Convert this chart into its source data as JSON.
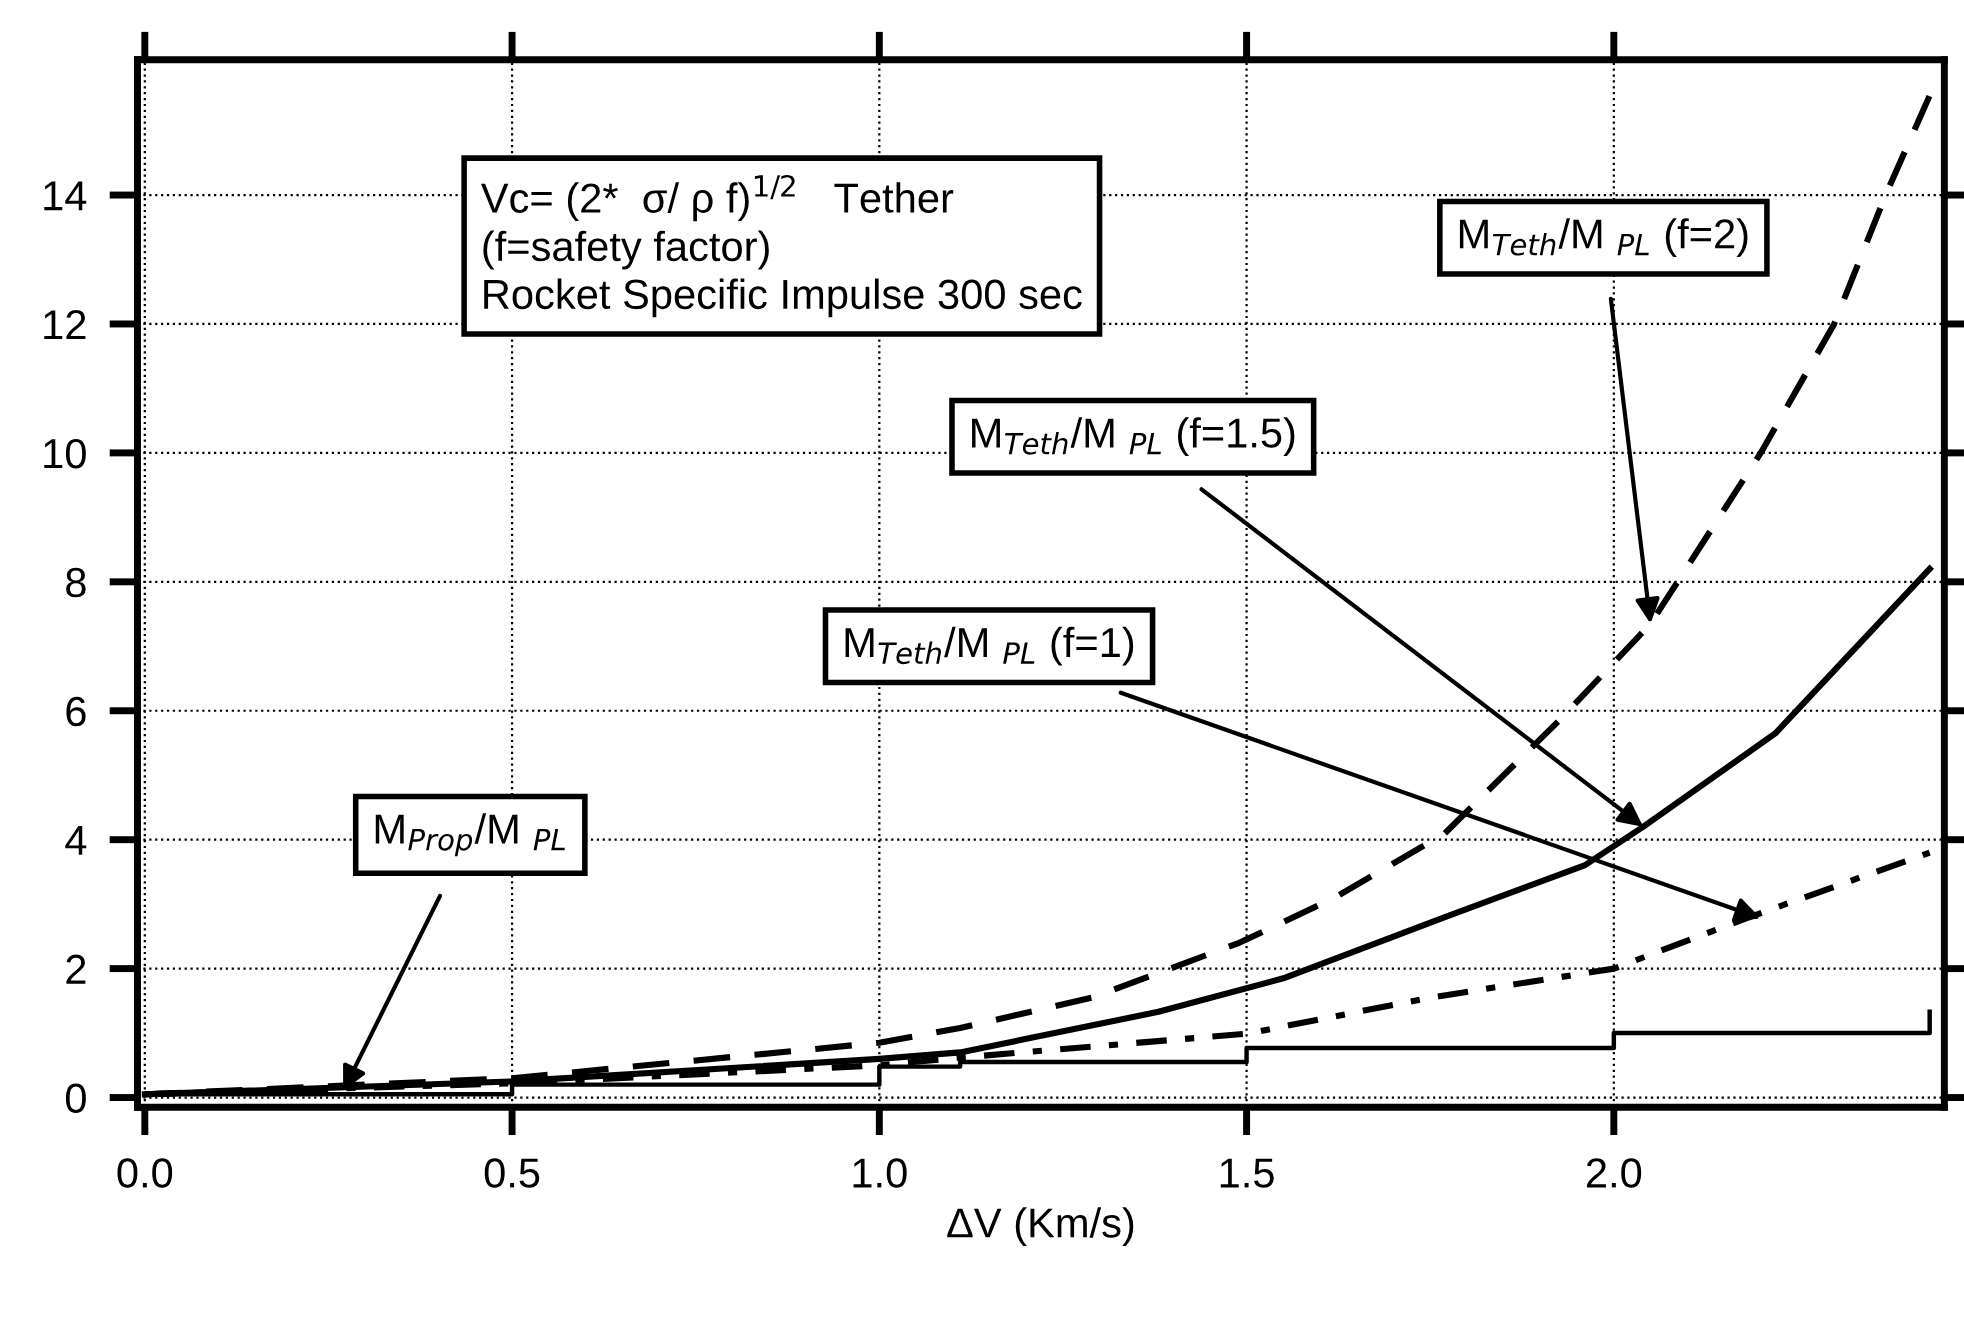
{
  "chart_data": {
    "type": "line",
    "xlabel": "ΔV (Km/s)",
    "xlim": [
      -0.01,
      2.45
    ],
    "ylim": [
      -0.15,
      16.1
    ],
    "xticks": [
      {
        "value": 0,
        "label": "0.0"
      },
      0.5,
      {
        "value": 1,
        "label": "1.0"
      },
      1.5,
      {
        "value": 2,
        "label": "2.0"
      }
    ],
    "yticks": [
      0,
      2,
      4,
      6,
      8,
      10,
      12,
      14
    ],
    "grid": true,
    "marker": "none",
    "series": [
      {
        "color": "#000000",
        "line_style": "dashed",
        "x": [
          0,
          0.5,
          1.0,
          1.11,
          1.29,
          1.49,
          1.62,
          1.77,
          1.93,
          2.05,
          2.2,
          2.3,
          2.37,
          2.44
        ],
        "values": [
          0.05,
          0.3,
          0.85,
          1.08,
          1.55,
          2.4,
          3.1,
          4.1,
          5.9,
          7.35,
          10.0,
          12.0,
          14.0,
          15.8
        ]
      },
      {
        "color": "#000000",
        "line_style": "solid",
        "x": [
          0,
          0.5,
          1.0,
          1.11,
          1.38,
          1.55,
          1.77,
          1.96,
          2.04,
          2.22,
          2.43
        ],
        "values": [
          0.05,
          0.25,
          0.6,
          0.7,
          1.33,
          1.85,
          2.8,
          3.6,
          4.2,
          5.65,
          8.2
        ]
      },
      {
        "color": "#000000",
        "line_style": "dashdot",
        "x": [
          0,
          0.5,
          1.0,
          1.11,
          1.5,
          1.75,
          2.0,
          2.18,
          2.43
        ],
        "values": [
          0.05,
          0.22,
          0.5,
          0.62,
          0.99,
          1.55,
          2.0,
          2.78,
          3.8
        ]
      },
      {
        "color": "#000000",
        "type": "step",
        "line_style": "solid",
        "x": [
          0,
          0.5,
          1.0,
          1.11,
          1.5,
          2.0,
          2.43
        ],
        "values": [
          0.05,
          0.2,
          0.48,
          0.55,
          0.77,
          1.0,
          1.33
        ]
      }
    ],
    "annotations": [
      "Vc= (2*  σ/ ρ f)$^{1/2}$   Tether\n(f=safety factor)\nRocket Specific Impulse 300 sec",
      {
        "text": "M$_{Teth}$/M $_{PL}$ (f=2)",
        "x": 2.05,
        "y": 7.35
      },
      {
        "text": "M$_{Teth}$/M $_{PL}$ (f=1.5)",
        "x": 2.04,
        "y": 4.2
      },
      {
        "text": "M$_{Teth}$/M $_{PL}$ (f=1)",
        "x": 2.2,
        "y": 2.78
      },
      {
        "text": "M$_{Prop}$/M $_{PL}$",
        "x": 0.27,
        "y": 0.1
      }
    ]
  }
}
